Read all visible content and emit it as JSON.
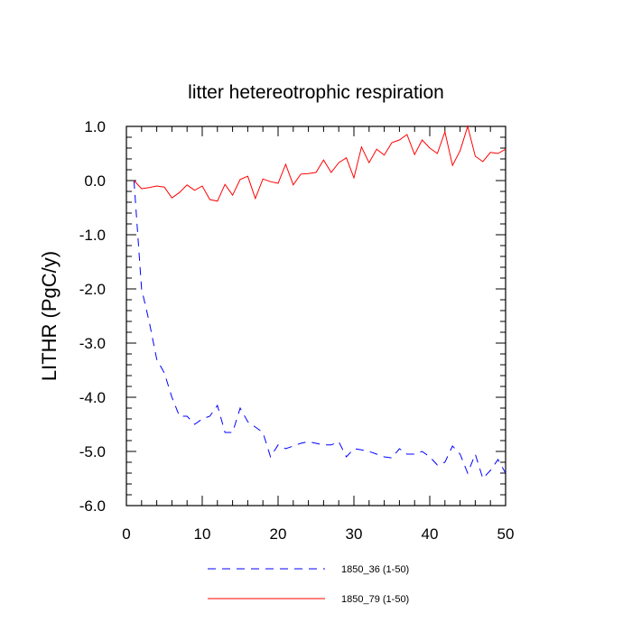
{
  "chart_data": {
    "type": "line",
    "title": "litter hetereotrophic respiration",
    "xlabel": "",
    "ylabel": "LITHR  (PgC/y)",
    "xlim": [
      0,
      50
    ],
    "ylim": [
      -6,
      1
    ],
    "xticks": [
      0,
      10,
      20,
      30,
      40,
      50
    ],
    "xtick_labels": [
      "0",
      "10",
      "20",
      "30",
      "40",
      "50"
    ],
    "yticks": [
      -6,
      -5,
      -4,
      -3,
      -2,
      -1,
      0,
      1
    ],
    "ytick_labels": [
      "-6.0",
      "-5.0",
      "-4.0",
      "-3.0",
      "-2.0",
      "-1.0",
      "0.0",
      "1.0"
    ],
    "grid": false,
    "legend_position": "bottom-center",
    "series": [
      {
        "name": "1850_36 (1-50)",
        "color": "#0000ff",
        "line_style": "dashed",
        "x": [
          1,
          2,
          3,
          4,
          5,
          6,
          7,
          8,
          9,
          10,
          11,
          12,
          13,
          14,
          15,
          16,
          17,
          18,
          19,
          20,
          21,
          22,
          23,
          24,
          25,
          26,
          27,
          28,
          29,
          30,
          31,
          32,
          33,
          34,
          35,
          36,
          37,
          38,
          39,
          40,
          41,
          42,
          43,
          44,
          45,
          46,
          47,
          48,
          49,
          50
        ],
        "values": [
          0.0,
          -2.0,
          -2.6,
          -3.3,
          -3.55,
          -4.0,
          -4.35,
          -4.35,
          -4.5,
          -4.4,
          -4.35,
          -4.15,
          -4.65,
          -4.65,
          -4.2,
          -4.45,
          -4.55,
          -4.65,
          -5.1,
          -4.88,
          -4.95,
          -4.9,
          -4.85,
          -4.82,
          -4.85,
          -4.88,
          -4.88,
          -4.82,
          -5.1,
          -4.95,
          -4.97,
          -5.0,
          -5.05,
          -5.1,
          -5.12,
          -4.95,
          -5.05,
          -5.05,
          -5.0,
          -5.1,
          -5.25,
          -5.2,
          -4.9,
          -5.05,
          -5.4,
          -5.05,
          -5.5,
          -5.35,
          -5.15,
          -5.4
        ]
      },
      {
        "name": "1850_79 (1-50)",
        "color": "#ff0000",
        "line_style": "solid",
        "x": [
          1,
          2,
          3,
          4,
          5,
          6,
          7,
          8,
          9,
          10,
          11,
          12,
          13,
          14,
          15,
          16,
          17,
          18,
          19,
          20,
          21,
          22,
          23,
          24,
          25,
          26,
          27,
          28,
          29,
          30,
          31,
          32,
          33,
          34,
          35,
          36,
          37,
          38,
          39,
          40,
          41,
          42,
          43,
          44,
          45,
          46,
          47,
          48,
          49,
          50
        ],
        "values": [
          0.0,
          -0.15,
          -0.13,
          -0.1,
          -0.12,
          -0.32,
          -0.22,
          -0.08,
          -0.18,
          -0.1,
          -0.35,
          -0.38,
          -0.07,
          -0.27,
          0.02,
          0.08,
          -0.33,
          0.03,
          -0.02,
          -0.05,
          0.3,
          -0.08,
          0.12,
          0.13,
          0.15,
          0.38,
          0.15,
          0.33,
          0.42,
          0.05,
          0.62,
          0.33,
          0.58,
          0.47,
          0.7,
          0.75,
          0.85,
          0.48,
          0.75,
          0.6,
          0.5,
          0.9,
          0.28,
          0.55,
          1.0,
          0.45,
          0.35,
          0.52,
          0.5,
          0.58
        ]
      }
    ]
  }
}
